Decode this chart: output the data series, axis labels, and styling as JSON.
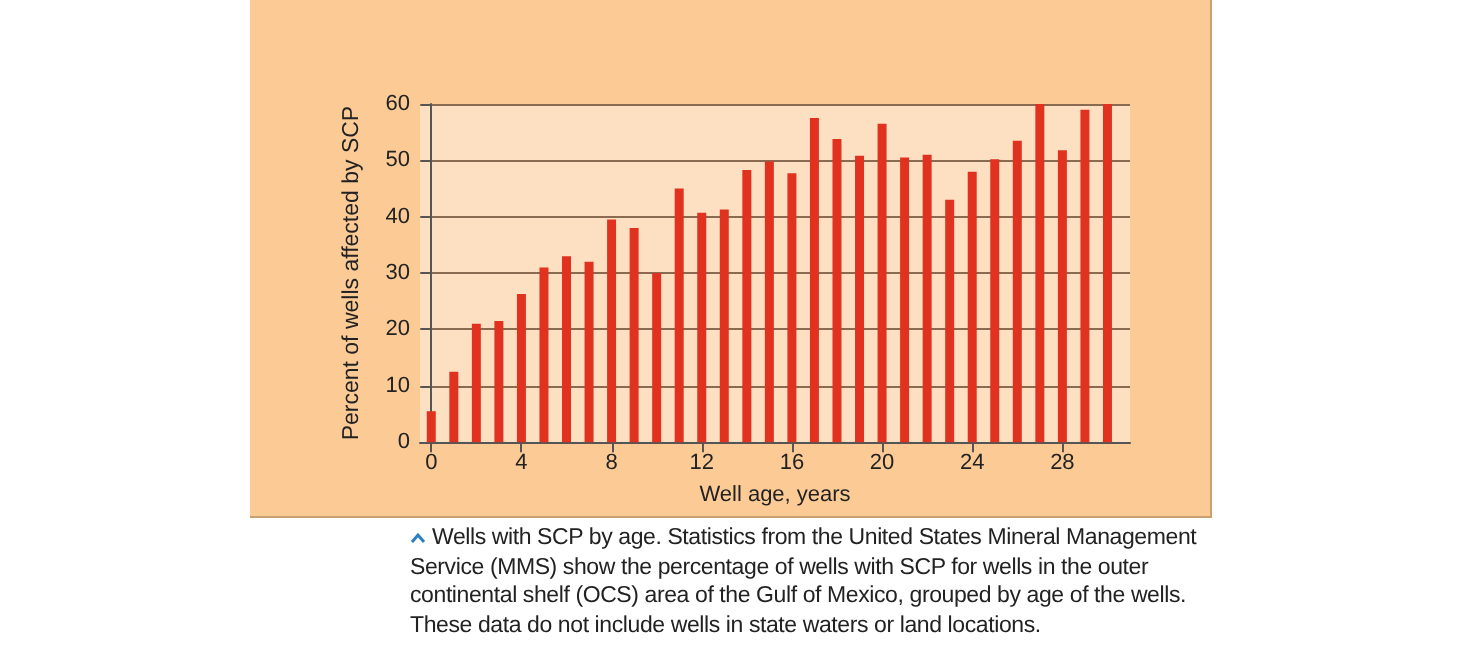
{
  "chart_data": {
    "type": "bar",
    "xlabel": "Well age, years",
    "ylabel": "Percent of wells affected by SCP",
    "x": [
      0,
      1,
      2,
      3,
      4,
      5,
      6,
      7,
      8,
      9,
      10,
      11,
      12,
      13,
      14,
      15,
      16,
      17,
      18,
      19,
      20,
      21,
      22,
      23,
      24,
      25,
      26,
      27,
      28,
      29,
      30
    ],
    "values": [
      5.5,
      12.5,
      21,
      21.5,
      26.3,
      31,
      33,
      32,
      39.5,
      38,
      30,
      45,
      40.7,
      41.3,
      48.3,
      49.8,
      47.7,
      57.5,
      53.8,
      50.8,
      56.5,
      50.5,
      51,
      43,
      48,
      50.2,
      53.5,
      60,
      51.8,
      59,
      60
    ],
    "color": "#e0321e",
    "xlim": [
      -0.5,
      31
    ],
    "xticks": [
      0,
      4,
      8,
      12,
      16,
      20,
      24,
      28
    ],
    "ylim": [
      0,
      60
    ],
    "yticks": [
      0,
      10,
      20,
      30,
      40,
      50,
      60
    ],
    "grid": "y",
    "annotations": [
      "Wells with SCP by age. Statistics from the United States Mineral Management Service (MMS) show the percentage of wells with SCP for wells in the outer continental shelf (OCS) area of the Gulf of Mexico, grouped by age of the wells. These data do not include wells in state waters or land locations."
    ]
  }
}
